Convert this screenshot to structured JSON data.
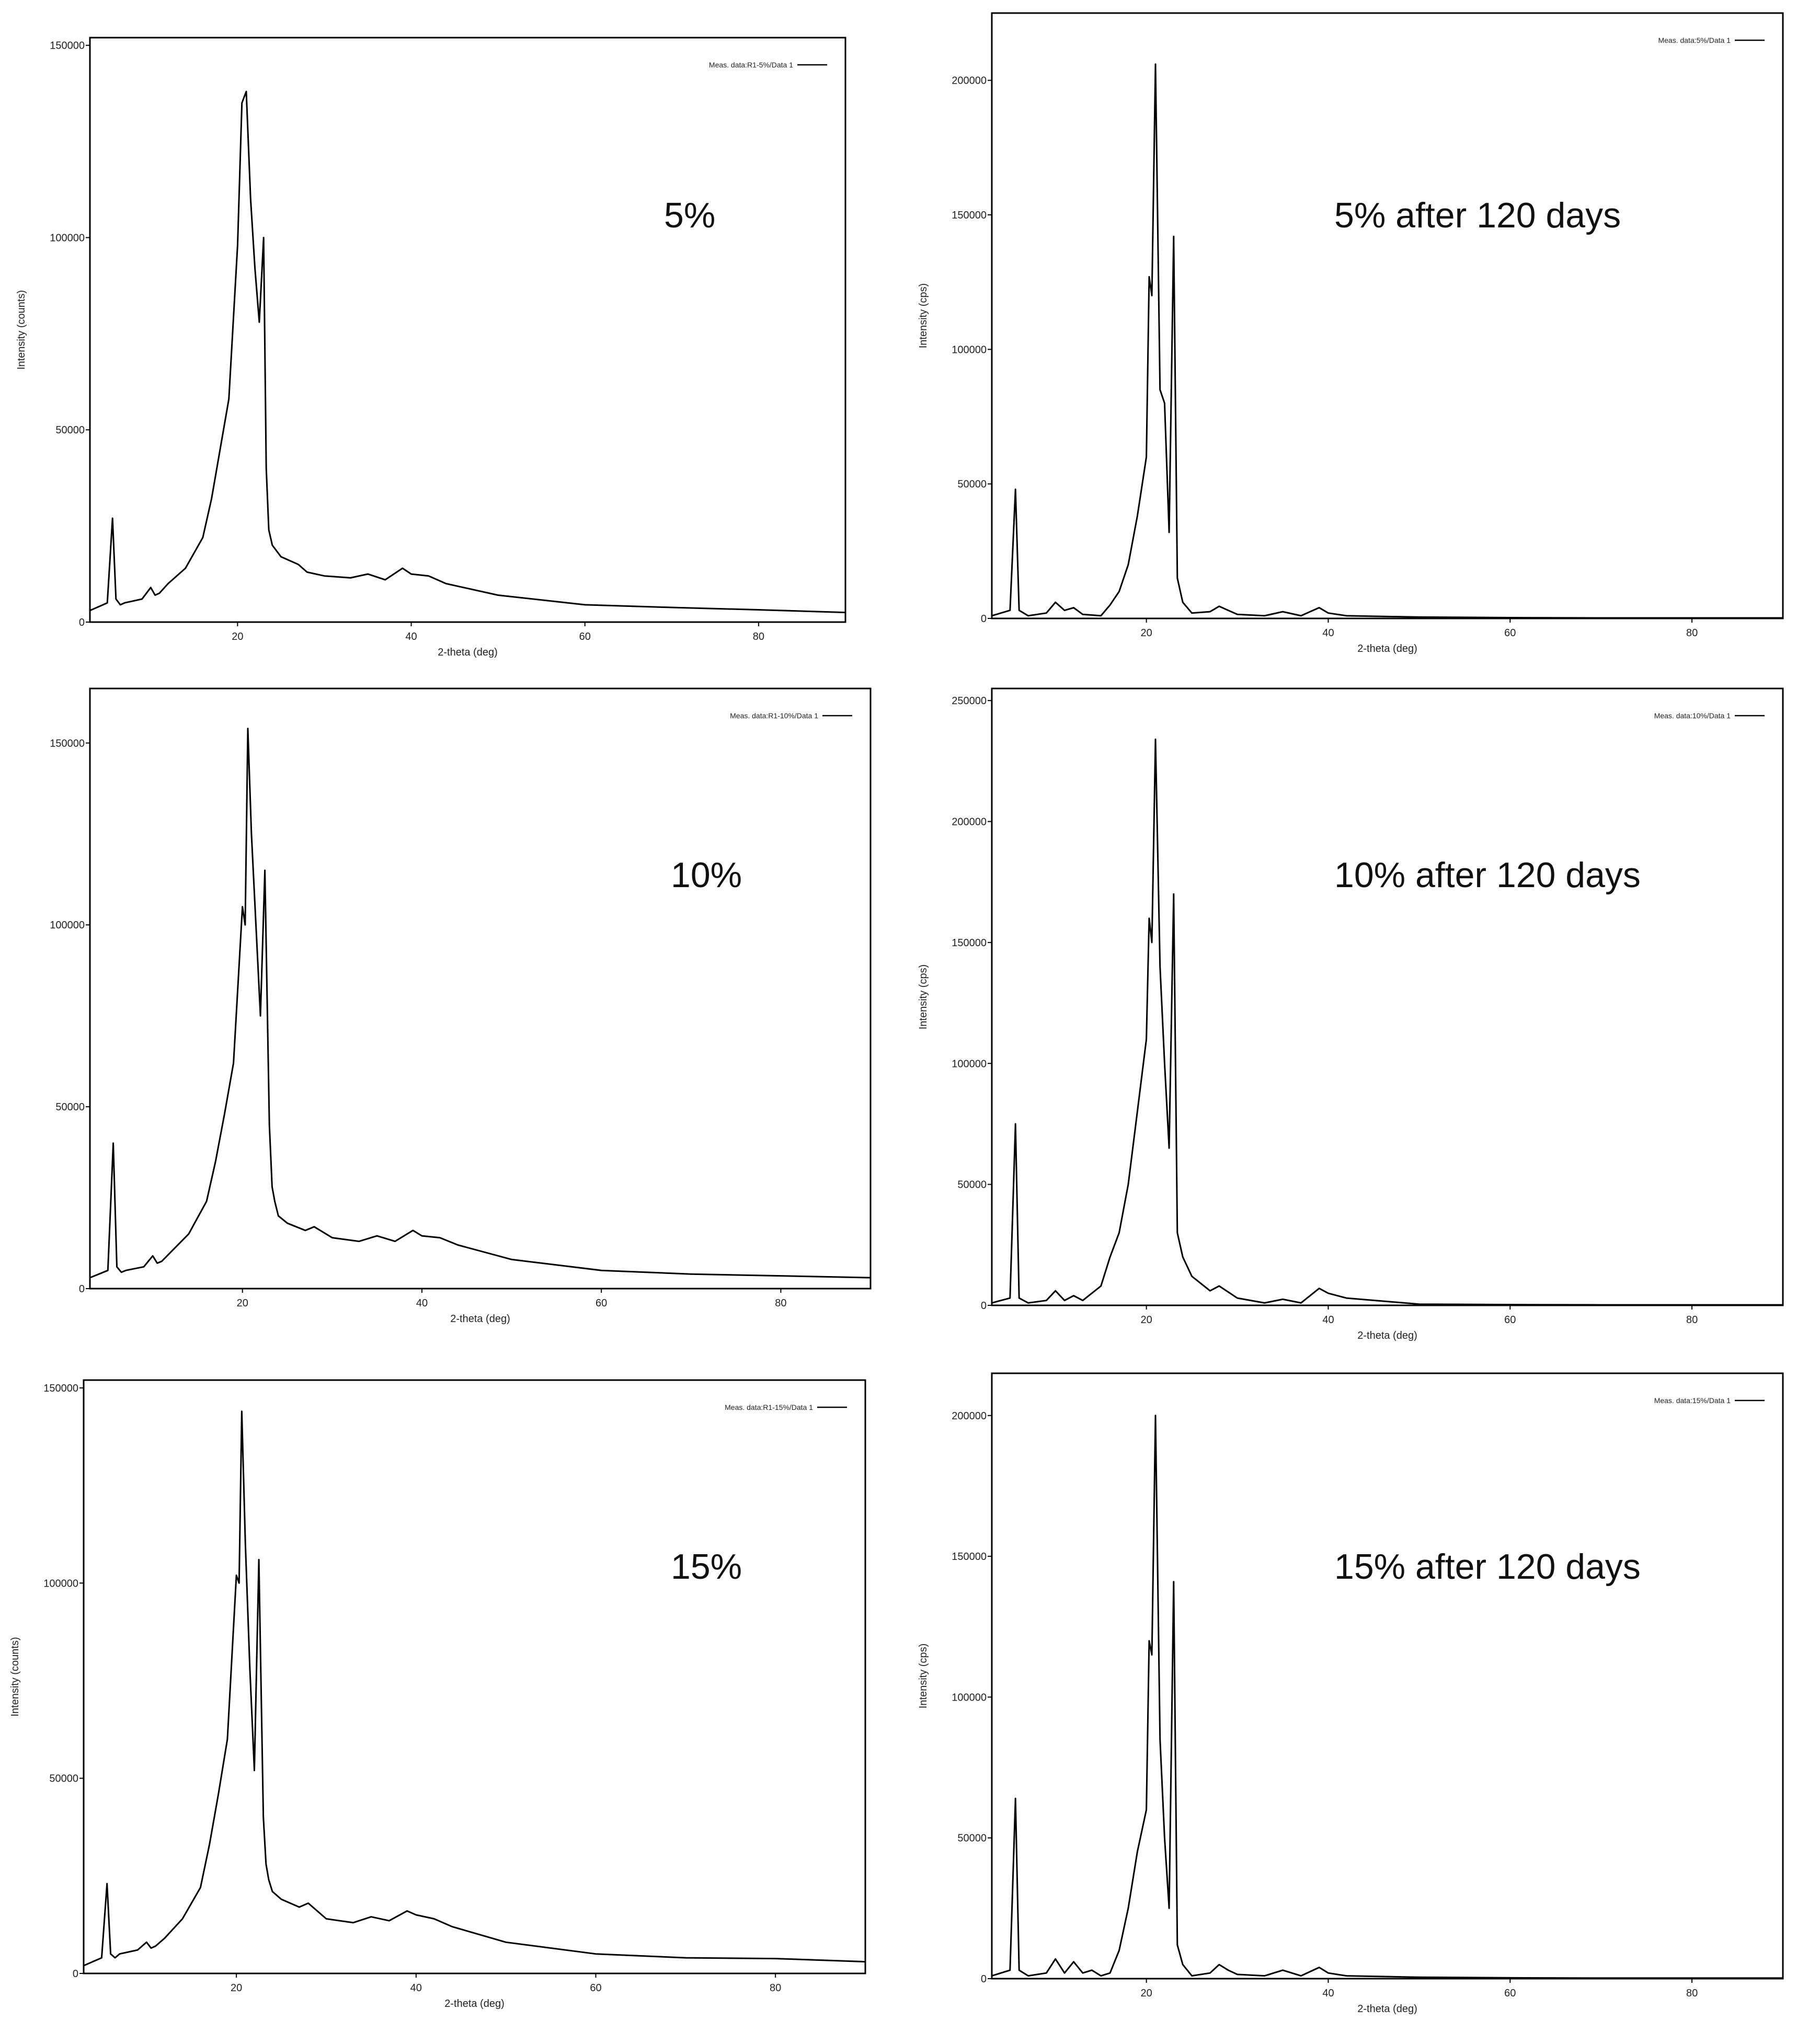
{
  "chart_data": [
    {
      "type": "line",
      "title": "",
      "annotation": "5%",
      "xlabel": "2-theta (deg)",
      "ylabel": "Intensity (counts)",
      "legend": "Meas. data:R1-5%/Data 1",
      "legend_position": "top-right",
      "xlim": [
        3,
        90
      ],
      "ylim": [
        0,
        152000
      ],
      "xticks": [
        20,
        40,
        60,
        80
      ],
      "yticks": [
        0,
        50000,
        100000,
        150000
      ],
      "ytick_labels": [
        "0",
        "50000",
        "100000",
        "150000"
      ],
      "series": [
        {
          "name": "Meas. data:R1-5%/Data 1",
          "x": [
            3,
            4,
            5,
            5.6,
            6,
            6.5,
            7,
            9,
            10,
            10.5,
            11,
            12,
            14,
            16,
            17,
            18,
            19,
            20,
            20.5,
            21,
            21.5,
            22,
            22.5,
            23,
            23.3,
            23.6,
            24,
            25,
            27,
            28,
            30,
            33,
            35,
            37,
            39,
            40,
            42,
            44,
            50,
            60,
            70,
            80,
            90
          ],
          "y": [
            3000,
            4000,
            5000,
            27000,
            6000,
            4500,
            5000,
            6000,
            9000,
            7000,
            7500,
            10000,
            14000,
            22000,
            32000,
            45000,
            58000,
            98000,
            135000,
            138000,
            110000,
            92000,
            78000,
            100000,
            40000,
            24000,
            20000,
            17000,
            15000,
            13000,
            12000,
            11500,
            12500,
            11000,
            14000,
            12500,
            12000,
            10000,
            7000,
            4500,
            3800,
            3200,
            2500
          ]
        }
      ]
    },
    {
      "type": "line",
      "title": "",
      "annotation": "5% after 120 days",
      "xlabel": "2-theta (deg)",
      "ylabel": "Intensity (cps)",
      "legend": "Meas. data:5%/Data 1",
      "legend_position": "top-right",
      "xlim": [
        3,
        90
      ],
      "ylim": [
        0,
        225000
      ],
      "xticks": [
        20,
        40,
        60,
        80
      ],
      "yticks": [
        0,
        50000,
        100000,
        150000,
        200000
      ],
      "ytick_labels": [
        "0",
        "50000",
        "100000",
        "150000",
        "200000"
      ],
      "series": [
        {
          "name": "Meas. data:5%/Data 1",
          "x": [
            3,
            4,
            5,
            5.6,
            6,
            7,
            9,
            10,
            11,
            12,
            13,
            15,
            16,
            17,
            18,
            19,
            20,
            20.3,
            20.6,
            21,
            21.5,
            22,
            22.5,
            23,
            23.4,
            24,
            25,
            27,
            28,
            29,
            30,
            33,
            35,
            37,
            39,
            40,
            42,
            50,
            60,
            70,
            80,
            90
          ],
          "y": [
            1000,
            2000,
            3000,
            48000,
            3000,
            1000,
            2000,
            6000,
            3000,
            4000,
            1500,
            1000,
            5000,
            10000,
            20000,
            38000,
            60000,
            127000,
            120000,
            206000,
            85000,
            80000,
            32000,
            142000,
            15000,
            6000,
            2000,
            2500,
            4500,
            3000,
            1500,
            1000,
            2500,
            1000,
            4000,
            2000,
            1000,
            500,
            300,
            200,
            200,
            200
          ]
        }
      ]
    },
    {
      "type": "line",
      "title": "",
      "annotation": "10%",
      "xlabel": "2-theta (deg)",
      "ylabel": "",
      "legend": "Meas. data:R1-10%/Data 1",
      "legend_position": "top-right",
      "xlim": [
        3,
        90
      ],
      "ylim": [
        0,
        165000
      ],
      "xticks": [
        20,
        40,
        60,
        80
      ],
      "yticks": [
        0,
        50000,
        100000,
        150000
      ],
      "ytick_labels": [
        "0",
        "50000",
        "100000",
        "150000"
      ],
      "series": [
        {
          "name": "Meas. data:R1-10%/Data 1",
          "x": [
            3,
            4,
            5,
            5.6,
            6,
            6.5,
            7,
            9,
            10,
            10.5,
            11,
            12,
            14,
            16,
            17,
            18,
            19,
            20,
            20.3,
            20.6,
            21,
            21.5,
            22,
            22.5,
            23,
            23.3,
            23.6,
            24,
            25,
            27,
            28,
            30,
            33,
            35,
            37,
            39,
            40,
            42,
            44,
            50,
            60,
            70,
            80,
            90
          ],
          "y": [
            3000,
            4000,
            5000,
            40000,
            6000,
            4500,
            5000,
            6000,
            9000,
            7000,
            7500,
            10000,
            15000,
            24000,
            35000,
            48000,
            62000,
            105000,
            100000,
            154000,
            125000,
            100000,
            75000,
            115000,
            45000,
            28000,
            24000,
            20000,
            18000,
            16000,
            17000,
            14000,
            13000,
            14500,
            13000,
            16000,
            14500,
            14000,
            12000,
            8000,
            5000,
            4000,
            3500,
            3000
          ]
        }
      ]
    },
    {
      "type": "line",
      "title": "",
      "annotation": "10% after 120 days",
      "xlabel": "2-theta (deg)",
      "ylabel": "Intensity (cps)",
      "legend": "Meas. data:10%/Data 1",
      "legend_position": "top-right",
      "xlim": [
        3,
        90
      ],
      "ylim": [
        0,
        255000
      ],
      "xticks": [
        20,
        40,
        60,
        80
      ],
      "yticks": [
        0,
        50000,
        100000,
        150000,
        200000,
        250000
      ],
      "ytick_labels": [
        "0",
        "50000",
        "100000",
        "150000",
        "200000",
        "250000"
      ],
      "series": [
        {
          "name": "Meas. data:10%/Data 1",
          "x": [
            3,
            4,
            5,
            5.6,
            6,
            7,
            9,
            10,
            11,
            12,
            13,
            15,
            16,
            17,
            18,
            19,
            20,
            20.3,
            20.6,
            21,
            21.5,
            22,
            22.5,
            23,
            23.4,
            24,
            25,
            27,
            28,
            30,
            33,
            35,
            37,
            39,
            40,
            42,
            50,
            60,
            70,
            80,
            90
          ],
          "y": [
            1000,
            2000,
            3000,
            75000,
            3000,
            1000,
            2000,
            6000,
            2000,
            4000,
            2000,
            8000,
            20000,
            30000,
            50000,
            80000,
            110000,
            160000,
            150000,
            234000,
            140000,
            100000,
            65000,
            170000,
            30000,
            20000,
            12000,
            6000,
            8000,
            3000,
            1000,
            2500,
            1000,
            7000,
            5000,
            3000,
            500,
            300,
            200,
            200,
            200
          ]
        }
      ]
    },
    {
      "type": "line",
      "title": "",
      "annotation": "15%",
      "xlabel": "2-theta (deg)",
      "ylabel": "Intensity (counts)",
      "legend": "Meas. data:R1-15%/Data 1",
      "legend_position": "top-right",
      "xlim": [
        3,
        90
      ],
      "ylim": [
        0,
        152000
      ],
      "xticks": [
        20,
        40,
        60,
        80
      ],
      "yticks": [
        0,
        50000,
        100000,
        150000
      ],
      "ytick_labels": [
        "0",
        "50000",
        "100000",
        "150000"
      ],
      "series": [
        {
          "name": "Meas. data:R1-15%/Data 1",
          "x": [
            3,
            4,
            5,
            5.6,
            6,
            6.5,
            7,
            9,
            10,
            10.5,
            11,
            12,
            14,
            16,
            17,
            18,
            19,
            20,
            20.3,
            20.6,
            21,
            21.5,
            22,
            22.5,
            23,
            23.3,
            23.6,
            24,
            25,
            27,
            28,
            30,
            33,
            35,
            37,
            39,
            40,
            42,
            44,
            50,
            60,
            70,
            80,
            90
          ],
          "y": [
            2000,
            3000,
            4000,
            23000,
            5000,
            4000,
            5000,
            6000,
            8000,
            6500,
            7000,
            9000,
            14000,
            22000,
            33000,
            46000,
            60000,
            102000,
            100000,
            144000,
            110000,
            78000,
            52000,
            106000,
            40000,
            28000,
            24000,
            21000,
            19000,
            17000,
            18000,
            14000,
            13000,
            14500,
            13500,
            16000,
            15000,
            14000,
            12000,
            8000,
            5000,
            4000,
            3800,
            3000
          ]
        }
      ]
    },
    {
      "type": "line",
      "title": "",
      "annotation": "15% after 120 days",
      "xlabel": "2-theta (deg)",
      "ylabel": "Intensity (cps)",
      "legend": "Meas. data:15%/Data 1",
      "legend_position": "top-right",
      "xlim": [
        3,
        90
      ],
      "ylim": [
        0,
        215000
      ],
      "xticks": [
        20,
        40,
        60,
        80
      ],
      "yticks": [
        0,
        50000,
        100000,
        150000,
        200000
      ],
      "ytick_labels": [
        "0",
        "50000",
        "100000",
        "150000",
        "200000"
      ],
      "series": [
        {
          "name": "Meas. data:15%/Data 1",
          "x": [
            3,
            4,
            5,
            5.6,
            6,
            7,
            9,
            10,
            11,
            12,
            13,
            14,
            15,
            16,
            17,
            18,
            19,
            20,
            20.3,
            20.6,
            21,
            21.5,
            22,
            22.5,
            23,
            23.4,
            24,
            25,
            27,
            28,
            29,
            30,
            33,
            35,
            37,
            39,
            40,
            42,
            50,
            60,
            70,
            80,
            90
          ],
          "y": [
            1000,
            2000,
            3000,
            64000,
            3000,
            1000,
            2000,
            7000,
            2000,
            6000,
            2000,
            3000,
            1000,
            2000,
            10000,
            25000,
            45000,
            60000,
            120000,
            115000,
            200000,
            85000,
            50000,
            25000,
            141000,
            12000,
            5000,
            1000,
            2000,
            5000,
            3000,
            1500,
            1000,
            3000,
            1000,
            4000,
            2000,
            1000,
            500,
            300,
            200,
            200,
            200
          ]
        }
      ]
    }
  ]
}
